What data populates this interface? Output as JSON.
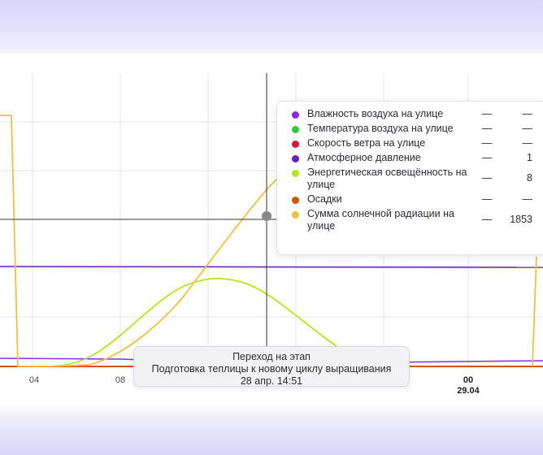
{
  "chart_data": {
    "type": "line",
    "x_ticks": [
      {
        "label": "04",
        "sub": ""
      },
      {
        "label": "08",
        "sub": ""
      },
      {
        "label": "00",
        "sub": "29.04"
      }
    ],
    "series": [
      {
        "name": "Влажность воздуха на улице",
        "color": "#8a2be2",
        "value": "—",
        "dash": "—"
      },
      {
        "name": "Температура воздуха на улице",
        "color": "#2ecc40",
        "value": "—",
        "dash": "—"
      },
      {
        "name": "Скорость ветра на улице",
        "color": "#dc143c",
        "value": "—",
        "dash": "—"
      },
      {
        "name": "Атмосферное давление",
        "color": "#6a1fb5",
        "value": "1",
        "dash": "—"
      },
      {
        "name": "Энергетическая освещённость на улице",
        "color": "#b5e61d",
        "value": "8",
        "dash": "—"
      },
      {
        "name": "Осадки",
        "color": "#d35400",
        "value": "—",
        "dash": "—"
      },
      {
        "name": "Сумма солнечной радиации на улице",
        "color": "#f0c040",
        "value": "1853",
        "dash": "—"
      }
    ]
  },
  "tooltip": {
    "line1": "Переход на этап",
    "line2": "Подготовка теплицы к новому циклу выращивания",
    "line3": "28 апр. 14:51"
  }
}
